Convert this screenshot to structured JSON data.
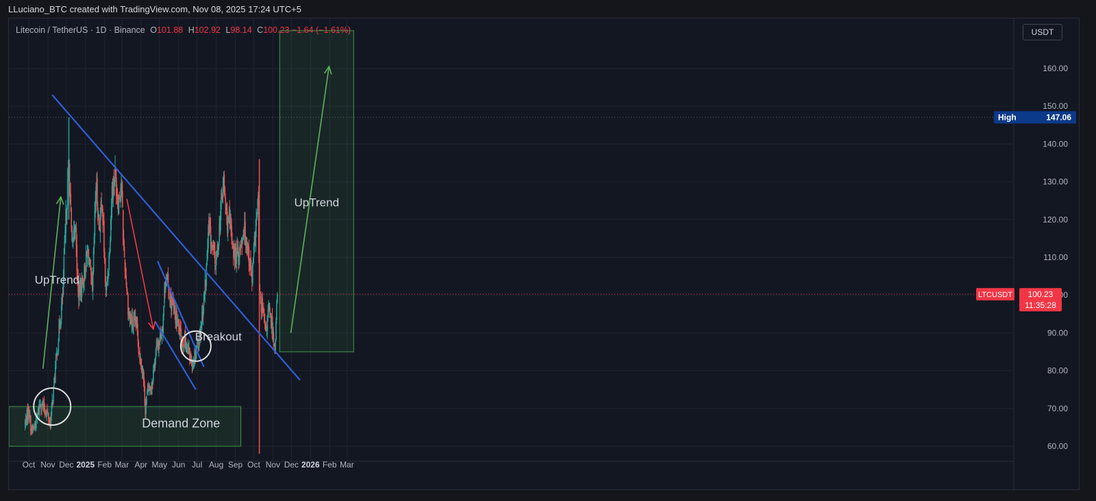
{
  "credit": "LLuciano_BTC created with TradingView.com, Nov 08, 2025 17:24 UTC+5",
  "legend": {
    "symbol": "Litecoin / TetherUS · 1D · Binance",
    "open_label": "O",
    "open": "101.88",
    "high_label": "H",
    "high": "102.92",
    "low_label": "L",
    "low": "98.14",
    "close_label": "C",
    "close": "100.23",
    "change": "−1.64 (−1.61%)"
  },
  "currency_button": "USDT",
  "chart_data": {
    "type": "candlestick",
    "title": "Litecoin / TetherUS · 1D · Binance",
    "xlabel": "",
    "ylabel": "",
    "ylim": [
      57,
      169
    ],
    "y_ticks": [
      "160.00",
      "150.00",
      "140.00",
      "130.00",
      "120.00",
      "110.00",
      "100.00",
      "90.00",
      "80.00",
      "70.00",
      "60.00"
    ],
    "x_ticks": [
      "Oct",
      "Nov",
      "Dec",
      "2025",
      "Feb",
      "Mar",
      "Apr",
      "May",
      "Jun",
      "Jul",
      "Aug",
      "Sep",
      "Oct",
      "Nov",
      "Dec",
      "2026",
      "Feb",
      "Mar"
    ],
    "major_ticks": [
      "2025",
      "2026"
    ],
    "price_path": [
      {
        "date": "2024-09-25",
        "close": 66
      },
      {
        "date": "2024-10-01",
        "close": 70
      },
      {
        "date": "2024-10-05",
        "close": 64
      },
      {
        "date": "2024-10-10",
        "close": 65
      },
      {
        "date": "2024-10-15",
        "close": 68
      },
      {
        "date": "2024-10-20",
        "close": 72
      },
      {
        "date": "2024-10-25",
        "close": 70
      },
      {
        "date": "2024-10-30",
        "close": 69
      },
      {
        "date": "2024-11-05",
        "close": 66
      },
      {
        "date": "2024-11-10",
        "close": 75
      },
      {
        "date": "2024-11-15",
        "close": 84
      },
      {
        "date": "2024-11-20",
        "close": 92
      },
      {
        "date": "2024-11-25",
        "close": 100
      },
      {
        "date": "2024-11-30",
        "close": 120
      },
      {
        "date": "2024-12-05",
        "close": 135
      },
      {
        "date": "2024-12-10",
        "close": 112
      },
      {
        "date": "2024-12-15",
        "close": 120
      },
      {
        "date": "2024-12-20",
        "close": 100
      },
      {
        "date": "2024-12-28",
        "close": 104
      },
      {
        "date": "2025-01-05",
        "close": 112
      },
      {
        "date": "2025-01-12",
        "close": 100
      },
      {
        "date": "2025-01-18",
        "close": 130
      },
      {
        "date": "2025-01-23",
        "close": 118
      },
      {
        "date": "2025-01-28",
        "close": 125
      },
      {
        "date": "2025-02-03",
        "close": 100
      },
      {
        "date": "2025-02-08",
        "close": 110
      },
      {
        "date": "2025-02-13",
        "close": 128
      },
      {
        "date": "2025-02-18",
        "close": 132
      },
      {
        "date": "2025-02-23",
        "close": 125
      },
      {
        "date": "2025-02-28",
        "close": 130
      },
      {
        "date": "2025-03-04",
        "close": 112
      },
      {
        "date": "2025-03-08",
        "close": 104
      },
      {
        "date": "2025-03-12",
        "close": 95
      },
      {
        "date": "2025-03-18",
        "close": 92
      },
      {
        "date": "2025-03-25",
        "close": 92
      },
      {
        "date": "2025-03-30",
        "close": 84
      },
      {
        "date": "2025-04-04",
        "close": 80
      },
      {
        "date": "2025-04-08",
        "close": 70
      },
      {
        "date": "2025-04-12",
        "close": 75
      },
      {
        "date": "2025-04-18",
        "close": 76
      },
      {
        "date": "2025-04-25",
        "close": 85
      },
      {
        "date": "2025-05-01",
        "close": 88
      },
      {
        "date": "2025-05-06",
        "close": 92
      },
      {
        "date": "2025-05-11",
        "close": 106
      },
      {
        "date": "2025-05-17",
        "close": 100
      },
      {
        "date": "2025-05-24",
        "close": 96
      },
      {
        "date": "2025-05-31",
        "close": 92
      },
      {
        "date": "2025-06-06",
        "close": 88
      },
      {
        "date": "2025-06-12",
        "close": 88
      },
      {
        "date": "2025-06-18",
        "close": 84
      },
      {
        "date": "2025-06-24",
        "close": 82
      },
      {
        "date": "2025-06-29",
        "close": 86
      },
      {
        "date": "2025-07-04",
        "close": 88
      },
      {
        "date": "2025-07-10",
        "close": 96
      },
      {
        "date": "2025-07-15",
        "close": 104
      },
      {
        "date": "2025-07-20",
        "close": 118
      },
      {
        "date": "2025-07-26",
        "close": 112
      },
      {
        "date": "2025-08-01",
        "close": 108
      },
      {
        "date": "2025-08-08",
        "close": 122
      },
      {
        "date": "2025-08-13",
        "close": 130
      },
      {
        "date": "2025-08-18",
        "close": 120
      },
      {
        "date": "2025-08-24",
        "close": 118
      },
      {
        "date": "2025-08-31",
        "close": 110
      },
      {
        "date": "2025-09-08",
        "close": 112
      },
      {
        "date": "2025-09-15",
        "close": 118
      },
      {
        "date": "2025-09-22",
        "close": 112
      },
      {
        "date": "2025-09-28",
        "close": 104
      },
      {
        "date": "2025-10-04",
        "close": 118
      },
      {
        "date": "2025-10-08",
        "close": 124
      },
      {
        "date": "2025-10-10",
        "close": 100
      },
      {
        "date": "2025-10-15",
        "close": 96
      },
      {
        "date": "2025-10-20",
        "close": 90
      },
      {
        "date": "2025-10-25",
        "close": 96
      },
      {
        "date": "2025-10-30",
        "close": 92
      },
      {
        "date": "2025-11-04",
        "close": 86
      },
      {
        "date": "2025-11-08",
        "close": 100.23
      }
    ],
    "annotations": {
      "uptrend_left": "UpTrend",
      "uptrend_right": "UpTrend",
      "breakout": "Breakout",
      "demand_zone": "Demand Zone"
    },
    "demand_zone": {
      "from": "2024-09-25",
      "to": "2025-09-10",
      "low": 60,
      "high": 70.5
    },
    "uptrend_box": {
      "from": "2025-11-12",
      "to": "2026-03-12",
      "low": 85,
      "high": 170
    },
    "main_trendline": [
      {
        "date": "2024-11-08",
        "price": 153
      },
      {
        "date": "2025-12-15",
        "price": 77.5
      }
    ],
    "channel_upper": [
      {
        "date": "2025-04-28",
        "price": 109
      },
      {
        "date": "2025-07-12",
        "price": 81
      }
    ],
    "channel_lower": [
      {
        "date": "2025-04-24",
        "price": 93
      },
      {
        "date": "2025-06-29",
        "price": 75
      }
    ],
    "high_line": {
      "label": "High",
      "value": "147.06"
    },
    "last_price": {
      "symbol": "LTCUSDT",
      "value": "100.23",
      "countdown": "11:35:28"
    },
    "colors": {
      "up": "#26a69a",
      "down": "#ef5350",
      "trendline": "#2f5ed8",
      "arrow_up": "#5fb35f",
      "arrow_down": "#ef3b4a",
      "zone": "#3f9a4a",
      "last_price": "#f23645",
      "high_label": "#0c3a8a"
    }
  }
}
